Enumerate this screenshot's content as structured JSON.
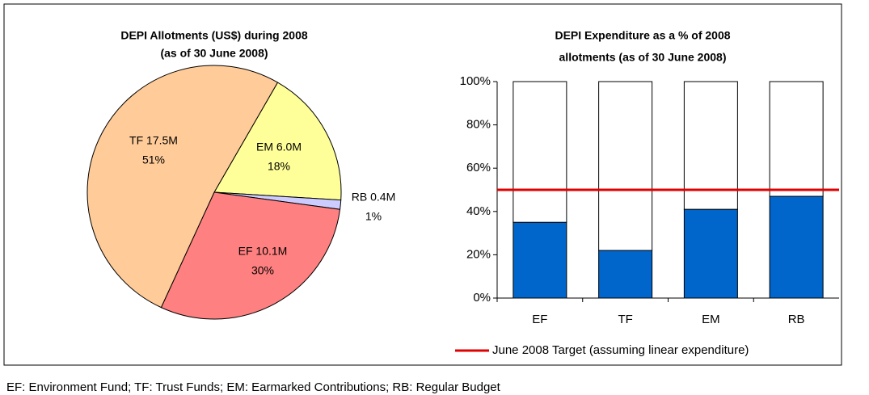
{
  "chart_data": [
    {
      "type": "pie",
      "title": [
        "DEPI Allotments (US$) during 2008",
        "(as of 30 June 2008)"
      ],
      "categories": [
        "EM",
        "RB",
        "EF",
        "TF"
      ],
      "values": [
        6.0,
        0.4,
        10.1,
        17.5
      ],
      "value_labels": [
        "EM 6.0M",
        "RB 0.4M",
        "EF 10.1M",
        "TF 17.5M"
      ],
      "percent_labels": [
        "18%",
        "1%",
        "30%",
        "51%"
      ],
      "colors": [
        "#ffff99",
        "#ccccff",
        "#ff8080",
        "#ffcc99"
      ]
    },
    {
      "type": "stacked_bar",
      "title": [
        "DEPI Expenditure as a % of 2008",
        "allotments (as of 30 June 2008)"
      ],
      "categories": [
        "EF",
        "TF",
        "EM",
        "RB"
      ],
      "series": [
        {
          "color": "#0066cc",
          "values": [
            35,
            22,
            41,
            47
          ]
        },
        {
          "color": "#ffffff",
          "values": [
            65,
            78,
            59,
            53
          ]
        }
      ],
      "target": {
        "name": "June 2008 Target (assuming linear expenditure)",
        "value": 50,
        "color": "#e00000"
      },
      "ylim": [
        0,
        100
      ],
      "yticks": [
        {
          "value": 0,
          "label": "0%"
        },
        {
          "value": 20,
          "label": "20%"
        },
        {
          "value": 40,
          "label": "40%"
        },
        {
          "value": 60,
          "label": "60%"
        },
        {
          "value": 80,
          "label": "80%"
        },
        {
          "value": 100,
          "label": "100%"
        }
      ],
      "legend": "bottom"
    }
  ],
  "footer": "EF: Environment Fund; TF: Trust Funds; EM: Earmarked Contributions; RB: Regular Budget"
}
